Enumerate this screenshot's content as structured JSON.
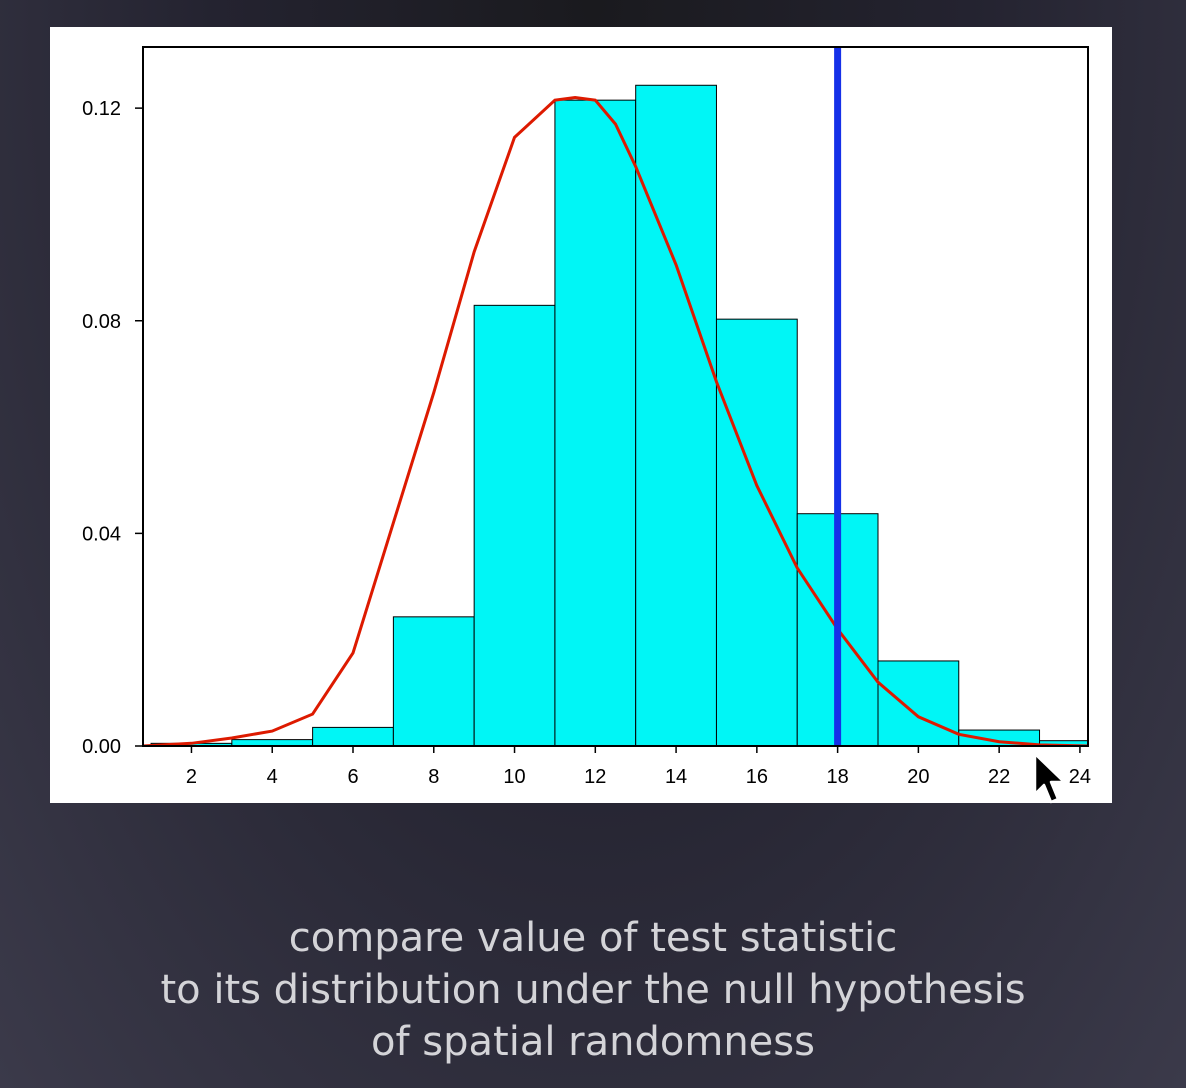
{
  "chart_data": {
    "type": "bar",
    "title": "",
    "xlabel": "",
    "ylabel": "",
    "xlim": [
      0.8,
      24.2
    ],
    "ylim": [
      0,
      0.1315
    ],
    "x_ticks": [
      "2",
      "4",
      "6",
      "8",
      "10",
      "12",
      "14",
      "16",
      "18",
      "20",
      "22",
      "24"
    ],
    "y_ticks": [
      "0.00",
      "0.04",
      "0.08",
      "0.12"
    ],
    "histogram": {
      "bin_edges": [
        1,
        3,
        5,
        7,
        9,
        11,
        13,
        15,
        17,
        19,
        21,
        23,
        25
      ],
      "densities": [
        0.0005,
        0.0012,
        0.0035,
        0.0243,
        0.0829,
        0.1215,
        0.1243,
        0.0803,
        0.0437,
        0.016,
        0.003,
        0.001
      ],
      "fill_color": "#00f6f6"
    },
    "density_curve": {
      "color": "#dd1a00",
      "x": [
        0.8,
        2,
        3,
        4,
        5,
        6,
        7,
        8,
        9,
        10,
        11,
        11.5,
        12,
        12.5,
        13,
        14,
        15,
        16,
        17,
        18,
        19,
        20,
        21,
        22,
        23,
        24.2
      ],
      "y": [
        0,
        0.0005,
        0.0015,
        0.0028,
        0.006,
        0.0175,
        0.042,
        0.0665,
        0.093,
        0.1145,
        0.1215,
        0.122,
        0.1215,
        0.117,
        0.109,
        0.0905,
        0.0685,
        0.049,
        0.0335,
        0.022,
        0.012,
        0.0055,
        0.0022,
        0.0008,
        0.0002,
        0
      ]
    },
    "observed_statistic": {
      "x": 18,
      "color": "#1530e8"
    }
  },
  "caption": {
    "line1": "compare value of test statistic",
    "line2": "to its distribution under the null hypothesis",
    "line3": "of spatial randomness"
  }
}
